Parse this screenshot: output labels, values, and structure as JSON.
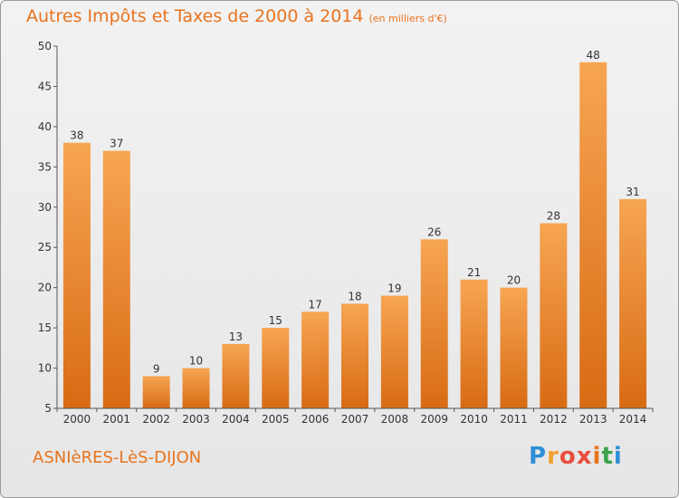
{
  "header": {
    "title": "Autres Impôts et Taxes de 2000 à 2014",
    "subtitle": "(en milliers d'€)"
  },
  "footer": {
    "commune": "ASNIèRES-LèS-DIJON",
    "logo_letters": [
      "P",
      "r",
      "o",
      "x",
      "i",
      "t",
      "i"
    ],
    "logo_colors": [
      "#2e8fd6",
      "#f2a12e",
      "#e84e3c",
      "#e84e3c",
      "#e8741e",
      "#3aa34a",
      "#2e8fd6"
    ]
  },
  "colors": {
    "bar_light": "#f7a552",
    "bar_dark": "#d86b14",
    "axis": "#555555",
    "grid": "#dddddd",
    "accent": "#e8741e"
  },
  "chart_data": {
    "type": "bar",
    "categories": [
      "2000",
      "2001",
      "2002",
      "2003",
      "2004",
      "2005",
      "2006",
      "2007",
      "2008",
      "2009",
      "2010",
      "2011",
      "2012",
      "2013",
      "2014"
    ],
    "values": [
      38,
      37,
      9,
      10,
      13,
      15,
      17,
      18,
      19,
      26,
      21,
      20,
      28,
      48,
      31
    ],
    "ylim": [
      5,
      50
    ],
    "yticks": [
      5,
      10,
      15,
      20,
      25,
      30,
      35,
      40,
      45,
      50
    ],
    "xlabel": "",
    "ylabel": "",
    "grid": false
  }
}
